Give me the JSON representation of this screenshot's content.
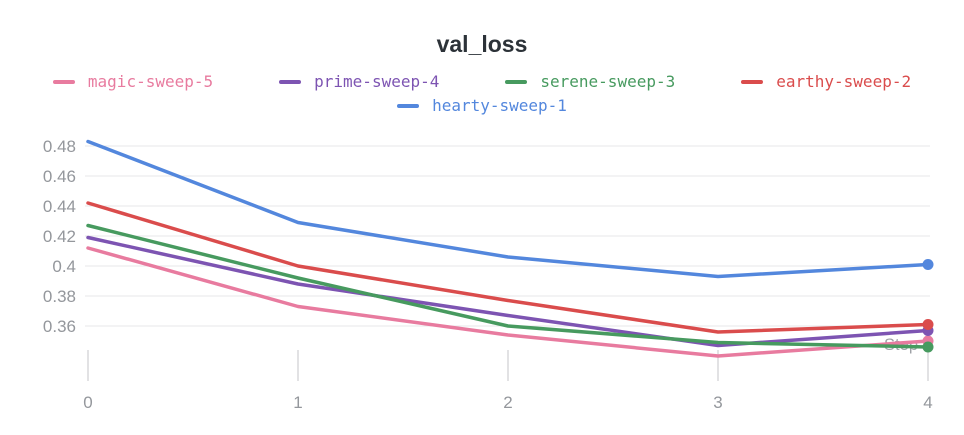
{
  "title": "val_loss",
  "axis": {
    "x_label": "Step",
    "x_tick_labels": [
      "0",
      "1",
      "2",
      "3",
      "4"
    ],
    "y_tick_labels": [
      "0.48",
      "0.46",
      "0.44",
      "0.42",
      "0.4",
      "0.38",
      "0.36"
    ]
  },
  "palette": {
    "magic_pink": "#E87B9F",
    "prime_purple": "#7D54B2",
    "serene_green": "#479A5F",
    "earthy_red": "#DA4C4C",
    "hearty_blue": "#5387DD",
    "gridline": "#e7e7e9",
    "tick_mark": "#e2e2e4",
    "axis_text": "#94979c",
    "title_text": "#2c3238"
  },
  "legend": {
    "row1_series_indexes": [
      0,
      1,
      2,
      3
    ],
    "row2_series_indexes": [
      4
    ]
  },
  "chart_data": {
    "type": "line",
    "title": "val_loss",
    "xlabel": "Step",
    "ylabel": "",
    "x": [
      0,
      1,
      2,
      3,
      4
    ],
    "series": [
      {
        "name": "magic-sweep-5",
        "color": "#E87B9F",
        "values": [
          0.412,
          0.373,
          0.354,
          0.34,
          0.35
        ]
      },
      {
        "name": "prime-sweep-4",
        "color": "#7D54B2",
        "values": [
          0.419,
          0.388,
          0.367,
          0.347,
          0.357
        ]
      },
      {
        "name": "serene-sweep-3",
        "color": "#479A5F",
        "values": [
          0.427,
          0.392,
          0.36,
          0.349,
          0.346
        ]
      },
      {
        "name": "earthy-sweep-2",
        "color": "#DA4C4C",
        "values": [
          0.442,
          0.4,
          0.377,
          0.356,
          0.361
        ]
      },
      {
        "name": "hearty-sweep-1",
        "color": "#5387DD",
        "values": [
          0.483,
          0.429,
          0.406,
          0.393,
          0.401
        ]
      }
    ],
    "yticks": [
      0.48,
      0.46,
      0.44,
      0.42,
      0.4,
      0.38,
      0.36
    ],
    "ylim_gridlines": [
      0.36,
      0.48
    ],
    "xlim": [
      0,
      4
    ],
    "grid": "horizontal-only",
    "legend_position": "top",
    "endpoint_markers": true
  }
}
